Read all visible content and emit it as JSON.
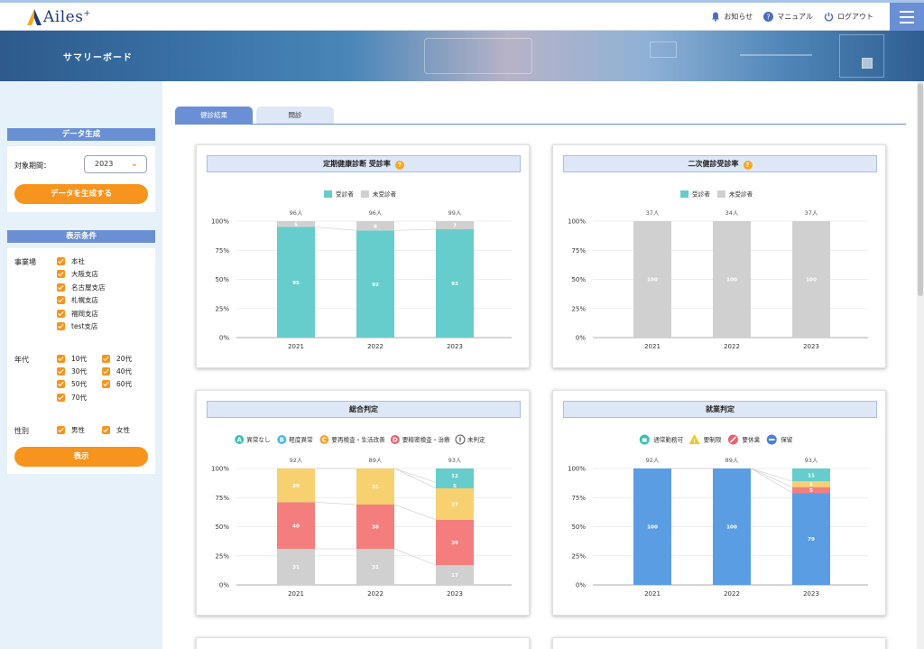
{
  "header": {
    "logo_text": "Ailes",
    "logo_sup": "+",
    "nav": [
      {
        "label": "お知らせ",
        "icon": "bell-icon"
      },
      {
        "label": "マニュアル",
        "icon": "help-icon"
      },
      {
        "label": "ログアウト",
        "icon": "power-icon"
      }
    ]
  },
  "banner": {
    "title": "サマリーボード"
  },
  "sidebar": {
    "data_gen": {
      "heading": "データ生成",
      "period_label": "対象期間：",
      "period_value": "2023",
      "button": "データを生成する"
    },
    "conditions": {
      "heading": "表示条件",
      "office_label": "事業場",
      "offices": [
        "本社",
        "大阪支店",
        "名古屋支店",
        "札幌支店",
        "福岡支店",
        "test支店"
      ],
      "age_label": "年代",
      "ages": [
        "10代",
        "20代",
        "30代",
        "40代",
        "50代",
        "60代",
        "70代"
      ],
      "gender_label": "性別",
      "genders": [
        "男性",
        "女性"
      ],
      "button": "表示"
    }
  },
  "tabs": [
    {
      "label": "健診結果"
    },
    {
      "label": "問診"
    }
  ],
  "colors": {
    "accent": "#f7941d",
    "primary": "#6b8fd4",
    "teal": "#66cccc",
    "gray": "#d0d0d0",
    "yellow": "#f7d070",
    "red": "#f47e7e",
    "blue": "#5b9de3"
  },
  "chart_data": [
    {
      "type": "bar",
      "title": "定期健康診断 受診率",
      "categories": [
        "2021",
        "2022",
        "2023"
      ],
      "totals": [
        "96人",
        "96人",
        "99人"
      ],
      "series": [
        {
          "name": "受診者",
          "values": [
            95,
            92,
            93
          ],
          "color": "#66cccc"
        },
        {
          "name": "未受診者",
          "values": [
            5,
            8,
            7
          ],
          "color": "#d0d0d0"
        }
      ],
      "yticks": [
        "0%",
        "25%",
        "50%",
        "75%",
        "100%"
      ]
    },
    {
      "type": "bar",
      "title": "二次健診受診率",
      "categories": [
        "2021",
        "2022",
        "2023"
      ],
      "totals": [
        "37人",
        "34人",
        "37人"
      ],
      "legend": [
        {
          "name": "受診者",
          "color": "#66cccc"
        },
        {
          "name": "未受診者",
          "color": "#d0d0d0"
        }
      ],
      "series": [
        {
          "values": [
            100,
            100,
            100
          ],
          "color": "#d0d0d0"
        }
      ],
      "yticks": [
        "0%",
        "25%",
        "50%",
        "75%",
        "100%"
      ]
    },
    {
      "type": "bar",
      "title": "総合判定",
      "categories": [
        "2021",
        "2022",
        "2023"
      ],
      "totals": [
        "92人",
        "89人",
        "93人"
      ],
      "legend": [
        {
          "badge": "A",
          "name": "異常なし",
          "color": "#34c3b3"
        },
        {
          "badge": "B",
          "name": "軽度異常",
          "color": "#43b7e8"
        },
        {
          "badge": "C",
          "name": "要再検査・生活改善",
          "color": "#f0a535"
        },
        {
          "badge": "D",
          "name": "要精密検査・治療",
          "color": "#ef5f6a"
        },
        {
          "badge": "!",
          "name": "未判定",
          "color": "#ffffff"
        }
      ],
      "series": [
        {
          "values": [
            31,
            31,
            17
          ],
          "color": "#d0d0d0"
        },
        {
          "values": [
            40,
            38,
            39
          ],
          "color": "#f47e7e"
        },
        {
          "values": [
            29,
            31,
            27
          ],
          "color": "#f7d070"
        },
        {
          "values": [
            0,
            0,
            5
          ],
          "color": "#66cccc"
        },
        {
          "values": [
            0,
            0,
            12
          ],
          "color": "#66cccc"
        }
      ],
      "yticks": [
        "0%",
        "25%",
        "50%",
        "75%",
        "100%"
      ]
    },
    {
      "type": "bar",
      "title": "就業判定",
      "categories": [
        "2021",
        "2022",
        "2023"
      ],
      "totals": [
        "92人",
        "89人",
        "93人"
      ],
      "legend": [
        {
          "name": "通常勤務可",
          "color": "#34c3b3"
        },
        {
          "name": "要制限",
          "color": "#f7c520"
        },
        {
          "name": "要休業",
          "color": "#ef5f6a"
        },
        {
          "name": "保留",
          "color": "#4a7fd6"
        }
      ],
      "series": [
        {
          "values": [
            100,
            100,
            79
          ],
          "color": "#5b9de3"
        },
        {
          "values": [
            0,
            0,
            5
          ],
          "color": "#f47e7e"
        },
        {
          "values": [
            0,
            0,
            5
          ],
          "color": "#f7d070"
        },
        {
          "values": [
            0,
            0,
            11
          ],
          "color": "#66cccc"
        }
      ],
      "yticks": [
        "0%",
        "25%",
        "50%",
        "75%",
        "100%"
      ]
    }
  ]
}
